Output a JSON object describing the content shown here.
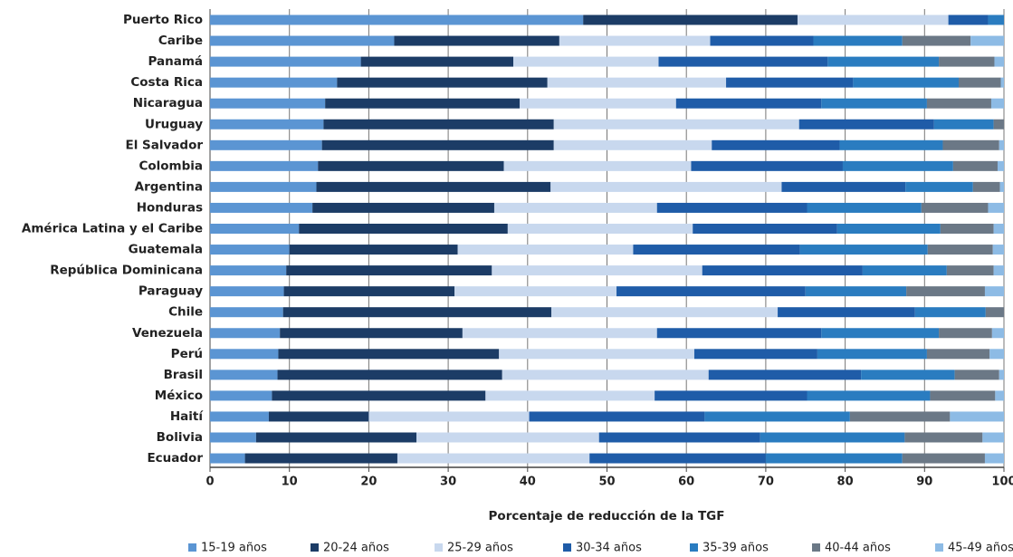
{
  "chart_data": {
    "type": "stacked-barh",
    "x_label": "Porcentaje de reducción de la TGF",
    "categories": [
      "Puerto Rico",
      "Caribe",
      "Panamá",
      "Costa Rica",
      "Nicaragua",
      "Uruguay",
      "El Salvador",
      "Colombia",
      "Argentina",
      "Honduras",
      "América Latina y el Caribe",
      "Guatemala",
      "República Dominicana",
      "Paraguay",
      "Chile",
      "Venezuela",
      "Perú",
      "Brasil",
      "México",
      "Haití",
      "Bolivia",
      "Ecuador"
    ],
    "series": [
      {
        "name": "15-19 años",
        "color": "#5b95d3",
        "values": [
          47,
          23.2,
          19,
          16,
          14.5,
          14.3,
          14.1,
          13.6,
          13.4,
          12.9,
          11.2,
          10,
          9.6,
          9.3,
          9.2,
          8.8,
          8.6,
          8.5,
          7.8,
          7.4,
          5.8,
          4.4
        ]
      },
      {
        "name": "20-24 años",
        "color": "#1c3c66",
        "values": [
          27,
          20.8,
          19.2,
          26.5,
          24.5,
          29,
          29.2,
          23.4,
          29.5,
          22.9,
          26.3,
          21.2,
          25.9,
          21.5,
          33.8,
          23,
          27.8,
          28.3,
          26.9,
          12.6,
          20.2,
          19.2
        ]
      },
      {
        "name": "25-29 años",
        "color": "#c8d8ee",
        "values": [
          19,
          19,
          18.3,
          22.5,
          19.7,
          30.9,
          19.9,
          23.6,
          29.1,
          20.5,
          23.3,
          22.1,
          26.5,
          20.4,
          28.5,
          24.5,
          24.6,
          26,
          21.3,
          20.2,
          23,
          24.2
        ]
      },
      {
        "name": "30-34 años",
        "color": "#1f5ca8",
        "values": [
          5,
          13,
          21.3,
          16,
          18.3,
          17,
          16.1,
          19.1,
          15.6,
          18.9,
          18.2,
          21,
          20.2,
          23.8,
          17.3,
          20.7,
          15.5,
          19.2,
          19.2,
          22.1,
          20.3,
          22.2
        ]
      },
      {
        "name": "35-39 años",
        "color": "#2a7cc0",
        "values": [
          2,
          11.2,
          14,
          13.3,
          13.3,
          7.5,
          13,
          13.9,
          8.5,
          14.4,
          13,
          16.1,
          10.6,
          12.7,
          8.9,
          14.8,
          13.8,
          11.8,
          15.5,
          18.3,
          18.2,
          17.2
        ]
      },
      {
        "name": "40-44 años",
        "color": "#6b7886",
        "values": [
          0,
          8.6,
          7,
          5.3,
          8.1,
          1.3,
          7.1,
          5.6,
          3.4,
          8.4,
          6.7,
          8.2,
          5.9,
          9.9,
          2.3,
          6.7,
          7.9,
          5.6,
          8.2,
          12.6,
          9.8,
          10.4
        ]
      },
      {
        "name": "45-49 años",
        "color": "#8dbbe5",
        "values": [
          0,
          4.2,
          1.2,
          0.4,
          1.6,
          0,
          0.6,
          0.8,
          0.5,
          2,
          1.3,
          1.4,
          1.3,
          2.4,
          0,
          1.5,
          1.8,
          0.6,
          1.1,
          6.8,
          2.7,
          2.4
        ]
      }
    ],
    "xlim": [
      0,
      100
    ],
    "xticks": [
      0,
      10,
      20,
      30,
      40,
      50,
      60,
      70,
      80,
      90,
      100
    ],
    "grid": true
  }
}
